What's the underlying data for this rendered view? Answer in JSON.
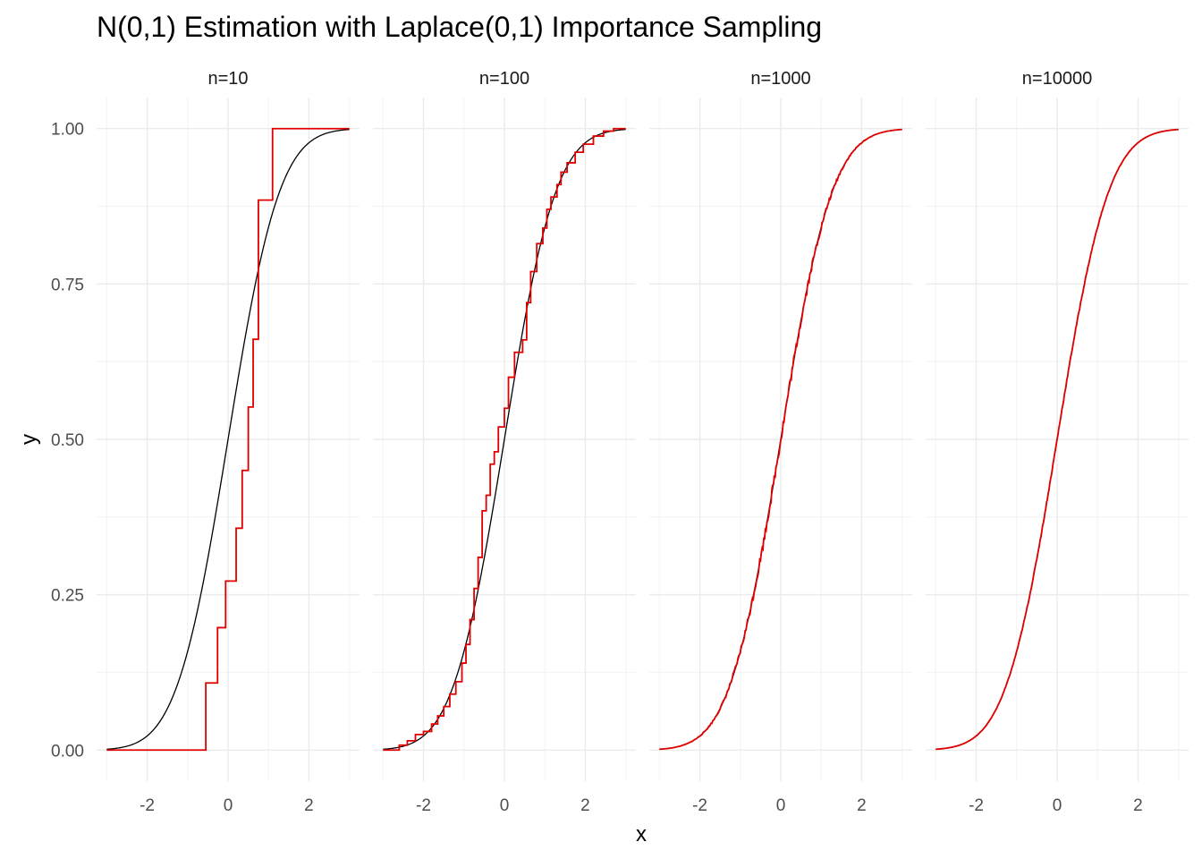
{
  "chart_data": {
    "type": "line",
    "title": "N(0,1) Estimation with Laplace(0,1) Importance Sampling",
    "xlabel": "x",
    "ylabel": "y",
    "xlim": [
      -3.0,
      3.0
    ],
    "ylim": [
      0,
      1
    ],
    "x_ticks": [
      -2,
      0,
      2
    ],
    "y_ticks": [
      0,
      0.25,
      0.5,
      0.75,
      1
    ],
    "y_tick_labels": [
      "0.00",
      "0.25",
      "0.50",
      "0.75",
      "1.00"
    ],
    "grid": true,
    "legend": "none",
    "colors": {
      "true_cdf": "#000000",
      "estimate": "#e00000",
      "grid_major": "#ebebeb",
      "grid_minor": "#f4f4f4"
    },
    "panels": [
      {
        "label": "n=10",
        "estimate_steps": [
          [
            -3.0,
            0.0
          ],
          [
            -0.55,
            0.0
          ],
          [
            -0.55,
            0.108
          ],
          [
            -0.26,
            0.108
          ],
          [
            -0.26,
            0.197
          ],
          [
            -0.06,
            0.197
          ],
          [
            -0.06,
            0.272
          ],
          [
            0.2,
            0.272
          ],
          [
            0.2,
            0.357
          ],
          [
            0.35,
            0.357
          ],
          [
            0.35,
            0.45
          ],
          [
            0.5,
            0.45
          ],
          [
            0.5,
            0.552
          ],
          [
            0.62,
            0.552
          ],
          [
            0.62,
            0.661
          ],
          [
            0.75,
            0.661
          ],
          [
            0.75,
            0.885
          ],
          [
            1.1,
            0.885
          ],
          [
            1.1,
            1.0
          ],
          [
            3.0,
            1.0
          ]
        ]
      },
      {
        "label": "n=100",
        "estimate_steps": [
          [
            -3.0,
            0.0
          ],
          [
            -2.6,
            0.0
          ],
          [
            -2.6,
            0.008
          ],
          [
            -2.4,
            0.008
          ],
          [
            -2.4,
            0.015
          ],
          [
            -2.2,
            0.015
          ],
          [
            -2.2,
            0.025
          ],
          [
            -2.0,
            0.025
          ],
          [
            -2.0,
            0.03
          ],
          [
            -1.8,
            0.03
          ],
          [
            -1.8,
            0.042
          ],
          [
            -1.65,
            0.042
          ],
          [
            -1.65,
            0.055
          ],
          [
            -1.5,
            0.055
          ],
          [
            -1.5,
            0.07
          ],
          [
            -1.35,
            0.07
          ],
          [
            -1.35,
            0.09
          ],
          [
            -1.2,
            0.09
          ],
          [
            -1.2,
            0.11
          ],
          [
            -1.05,
            0.11
          ],
          [
            -1.05,
            0.14
          ],
          [
            -0.95,
            0.14
          ],
          [
            -0.95,
            0.17
          ],
          [
            -0.85,
            0.17
          ],
          [
            -0.85,
            0.21
          ],
          [
            -0.75,
            0.21
          ],
          [
            -0.75,
            0.26
          ],
          [
            -0.65,
            0.26
          ],
          [
            -0.65,
            0.31
          ],
          [
            -0.55,
            0.31
          ],
          [
            -0.55,
            0.385
          ],
          [
            -0.45,
            0.385
          ],
          [
            -0.45,
            0.41
          ],
          [
            -0.35,
            0.41
          ],
          [
            -0.35,
            0.46
          ],
          [
            -0.25,
            0.46
          ],
          [
            -0.25,
            0.48
          ],
          [
            -0.15,
            0.48
          ],
          [
            -0.15,
            0.52
          ],
          [
            0.0,
            0.52
          ],
          [
            0.0,
            0.55
          ],
          [
            0.1,
            0.55
          ],
          [
            0.1,
            0.6
          ],
          [
            0.25,
            0.6
          ],
          [
            0.25,
            0.64
          ],
          [
            0.45,
            0.64
          ],
          [
            0.45,
            0.66
          ],
          [
            0.55,
            0.66
          ],
          [
            0.55,
            0.72
          ],
          [
            0.65,
            0.72
          ],
          [
            0.65,
            0.77
          ],
          [
            0.8,
            0.77
          ],
          [
            0.8,
            0.815
          ],
          [
            0.95,
            0.815
          ],
          [
            0.95,
            0.84
          ],
          [
            1.05,
            0.84
          ],
          [
            1.05,
            0.87
          ],
          [
            1.15,
            0.87
          ],
          [
            1.15,
            0.89
          ],
          [
            1.3,
            0.89
          ],
          [
            1.3,
            0.91
          ],
          [
            1.4,
            0.91
          ],
          [
            1.4,
            0.93
          ],
          [
            1.55,
            0.93
          ],
          [
            1.55,
            0.945
          ],
          [
            1.75,
            0.945
          ],
          [
            1.75,
            0.962
          ],
          [
            1.95,
            0.962
          ],
          [
            1.95,
            0.975
          ],
          [
            2.2,
            0.975
          ],
          [
            2.2,
            0.988
          ],
          [
            2.45,
            0.988
          ],
          [
            2.45,
            0.996
          ],
          [
            2.7,
            0.996
          ],
          [
            2.7,
            1.0
          ],
          [
            3.0,
            1.0
          ]
        ]
      },
      {
        "label": "n=1000",
        "estimate_noise": 0.004
      },
      {
        "label": "n=10000",
        "estimate_noise": 0.0012
      }
    ]
  }
}
